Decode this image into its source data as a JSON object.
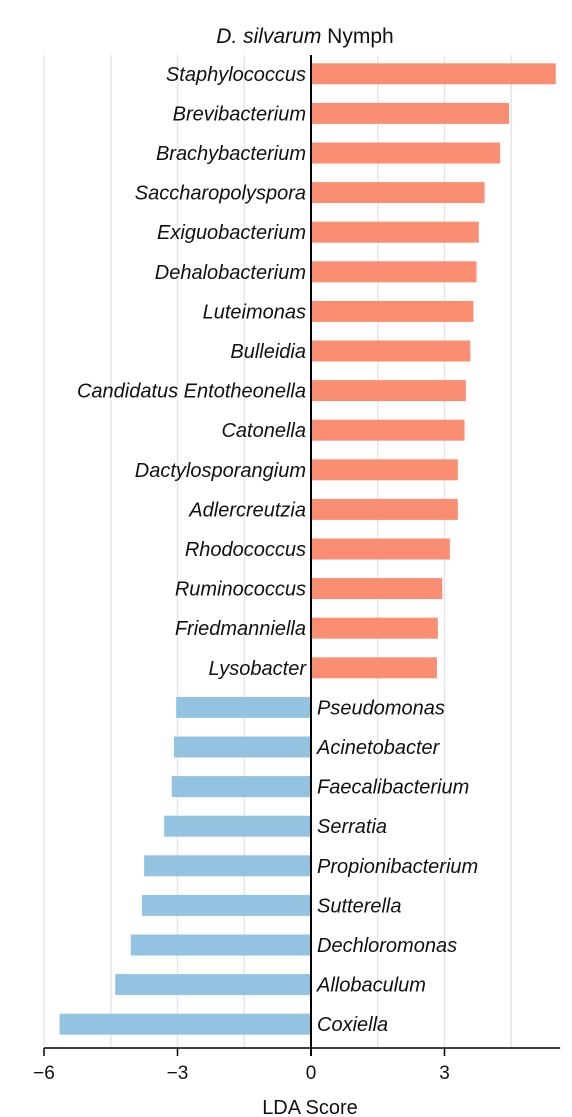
{
  "chart_data": {
    "type": "bar",
    "orientation": "horizontal",
    "title_italic": "D. silvarum",
    "title_rest": "Nymph",
    "xlabel": "LDA Score",
    "ylabel": "",
    "xlim": [
      -6,
      5.6
    ],
    "xticks": [
      -6,
      -3,
      0,
      3
    ],
    "xtick_labels": [
      "−6",
      "−3",
      "0",
      "3"
    ],
    "grid": true,
    "colors": {
      "positive": "#f98e73",
      "negative": "#94c3e2"
    },
    "categories": [
      "Staphylococcus",
      "Brevibacterium",
      "Brachybacterium",
      "Saccharopolyspora",
      "Exiguobacterium",
      "Dehalobacterium",
      "Luteimonas",
      "Bulleidia",
      "Candidatus Entotheonella",
      "Catonella",
      "Dactylosporangium",
      "Adlercreutzia",
      "Rhodococcus",
      "Ruminococcus",
      "Friedmanniella",
      "Lysobacter",
      "Pseudomonas",
      "Acinetobacter",
      "Faecalibacterium",
      "Serratia",
      "Propionibacterium",
      "Sutterella",
      "Dechloromonas",
      "Allobaculum",
      "Coxiella"
    ],
    "values": [
      5.5,
      4.45,
      4.25,
      3.9,
      3.77,
      3.72,
      3.65,
      3.58,
      3.48,
      3.45,
      3.3,
      3.3,
      3.12,
      2.95,
      2.85,
      2.83,
      -3.03,
      -3.08,
      -3.13,
      -3.3,
      -3.75,
      -3.8,
      -4.05,
      -4.4,
      -5.65
    ]
  }
}
